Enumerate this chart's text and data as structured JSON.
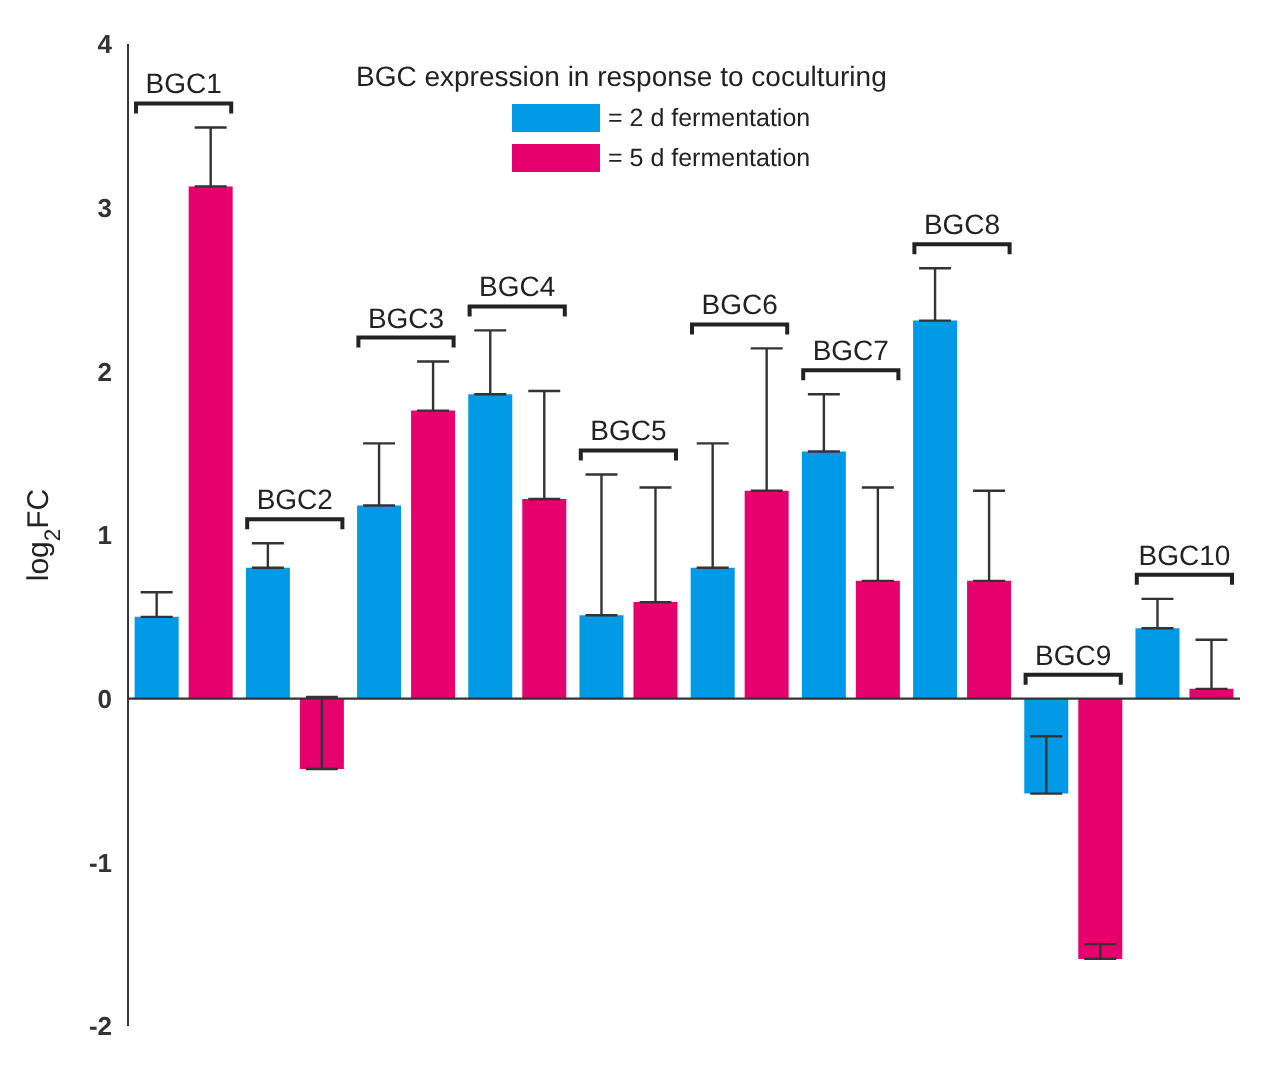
{
  "chart_data": {
    "type": "bar",
    "ylabel": "log$_{2}$FC",
    "legend_title": "BGC expression in response to coculturing",
    "categories": [
      "BGC1",
      "BGC2",
      "BGC3",
      "BGC4",
      "BGC5",
      "BGC6",
      "BGC7",
      "BGC8",
      "BGC9",
      "BGC10"
    ],
    "series": [
      {
        "name": "= 2 d fermentation",
        "color": "#0099e6",
        "values": [
          0.5,
          0.8,
          1.18,
          1.86,
          0.51,
          0.8,
          1.51,
          2.31,
          -0.58,
          0.43
        ],
        "errors": [
          [
            0.5,
            0.65
          ],
          [
            0.8,
            0.95
          ],
          [
            1.18,
            1.56
          ],
          [
            1.86,
            2.25
          ],
          [
            0.51,
            1.37
          ],
          [
            0.8,
            1.56
          ],
          [
            1.51,
            1.86
          ],
          [
            2.31,
            2.63
          ],
          [
            -0.58,
            -0.23
          ],
          [
            0.43,
            0.61
          ]
        ]
      },
      {
        "name": "= 5 d fermentation",
        "color": "#e5006e",
        "values": [
          3.13,
          -0.43,
          1.76,
          1.22,
          0.59,
          1.27,
          0.72,
          0.72,
          -1.59,
          0.06
        ],
        "errors": [
          [
            3.13,
            3.49
          ],
          [
            -0.43,
            0.01
          ],
          [
            1.76,
            2.06
          ],
          [
            1.22,
            1.88
          ],
          [
            0.59,
            1.29
          ],
          [
            1.27,
            2.14
          ],
          [
            0.72,
            1.29
          ],
          [
            0.72,
            1.27
          ],
          [
            -1.59,
            -1.5
          ],
          [
            0.06,
            0.36
          ]
        ]
      }
    ],
    "ylim": [
      -2,
      4
    ],
    "yticks": [
      -2,
      -1,
      0,
      1,
      2,
      3,
      4
    ],
    "legend": "top"
  }
}
